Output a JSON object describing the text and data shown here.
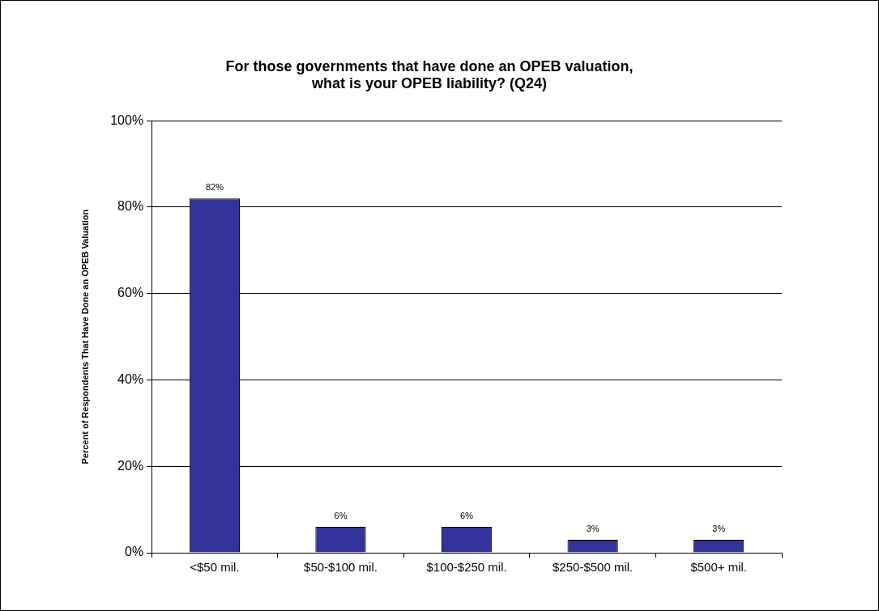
{
  "chart_data": {
    "type": "bar",
    "title": [
      "For those governments that have done an OPEB valuation,",
      "what is your OPEB liability? (Q24)"
    ],
    "ylabel": "Percent of Respondents That Have Done an OPEB Valuation",
    "categories": [
      "<$50 mil.",
      "$50-$100 mil.",
      "$100-$250 mil.",
      "$250-$500 mil.",
      "$500+ mil."
    ],
    "values": [
      82,
      6,
      6,
      3,
      3
    ],
    "color": "#333399",
    "value_labels": [
      "82%",
      "6%",
      "6%",
      "3%",
      "3%"
    ],
    "ylim": [
      0,
      100
    ],
    "yticks": [
      {
        "value": 0,
        "label": "0%"
      },
      {
        "value": 20,
        "label": "20%"
      },
      {
        "value": 40,
        "label": "40%"
      },
      {
        "value": 60,
        "label": "60%"
      },
      {
        "value": 80,
        "label": "80%"
      },
      {
        "value": 100,
        "label": "100%"
      }
    ],
    "grid": "y",
    "legend": false
  }
}
